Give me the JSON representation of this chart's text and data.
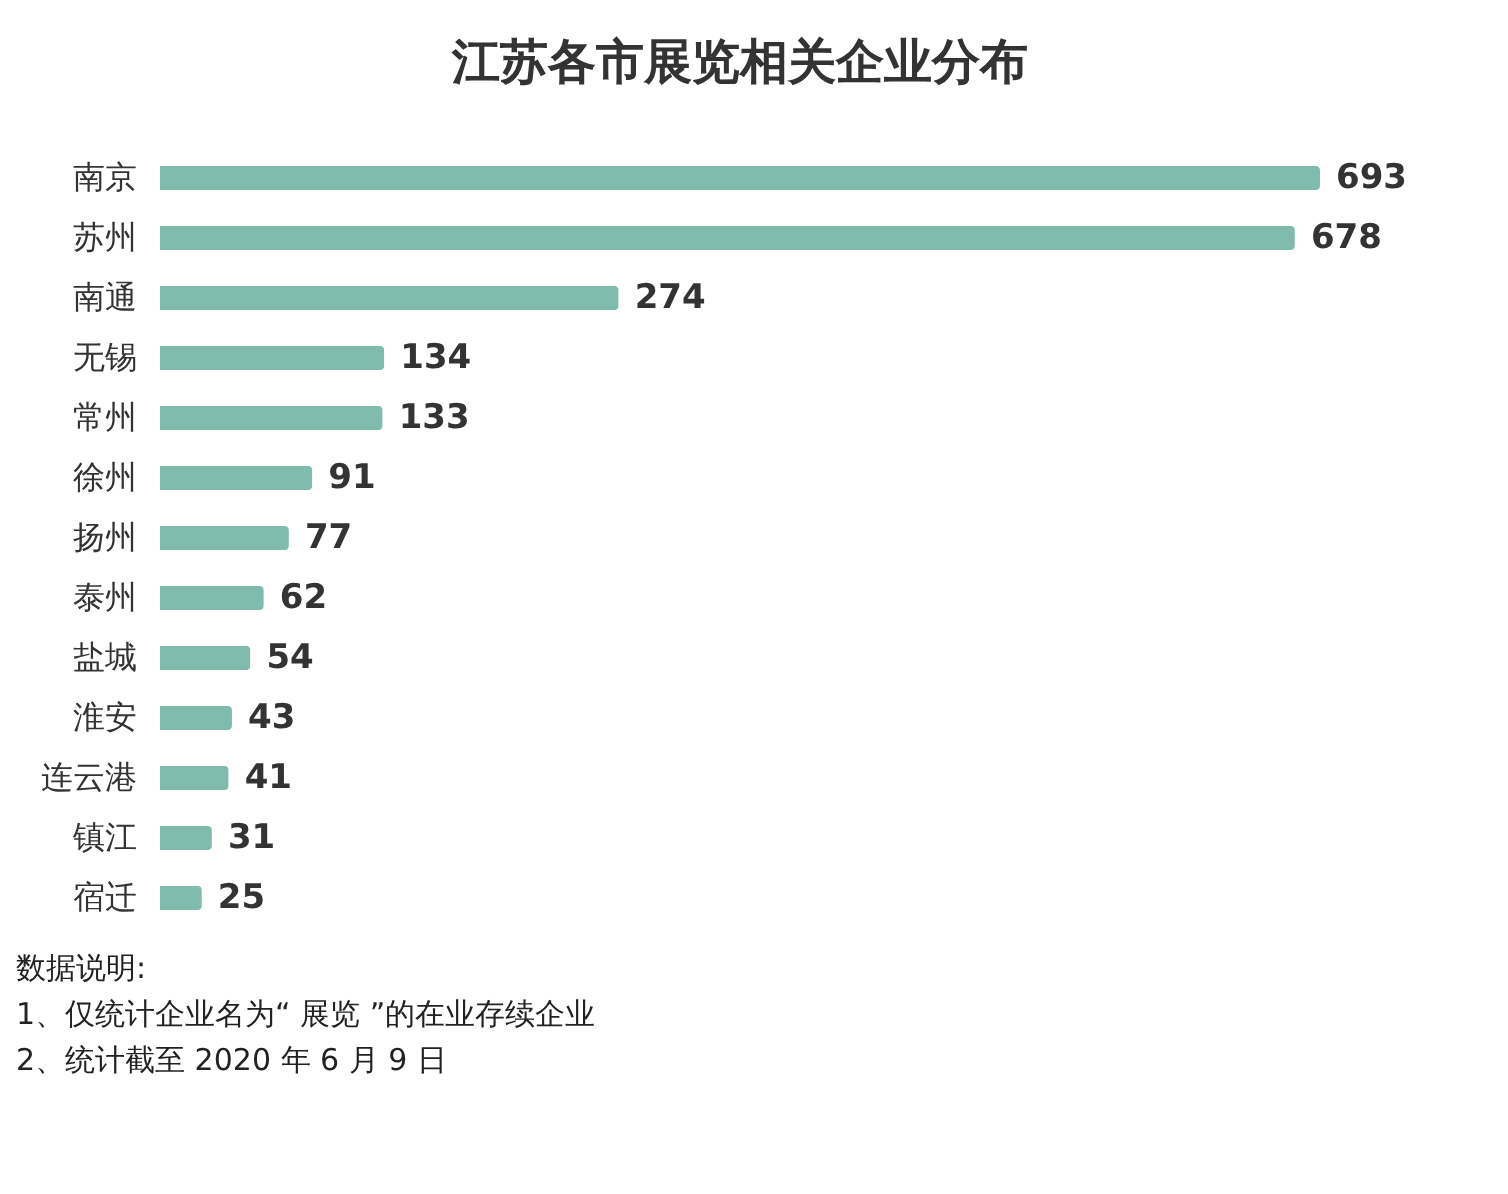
{
  "chart_data": {
    "type": "bar",
    "orientation": "horizontal",
    "title": "江苏各市展览相关企业分布",
    "categories": [
      "南京",
      "苏州",
      "南通",
      "无锡",
      "常州",
      "徐州",
      "扬州",
      "泰州",
      "盐城",
      "淮安",
      "连云港",
      "镇江",
      "宿迁"
    ],
    "values": [
      693,
      678,
      274,
      134,
      133,
      91,
      77,
      62,
      54,
      43,
      41,
      31,
      25
    ],
    "color": "#80bcae",
    "data_labels": true,
    "annotations": [
      "数据说明:",
      "1、仅统计企业名为“ 展览 ”的在业存续企业",
      "2、统计截至 2020 年 6 月 9 日"
    ]
  }
}
